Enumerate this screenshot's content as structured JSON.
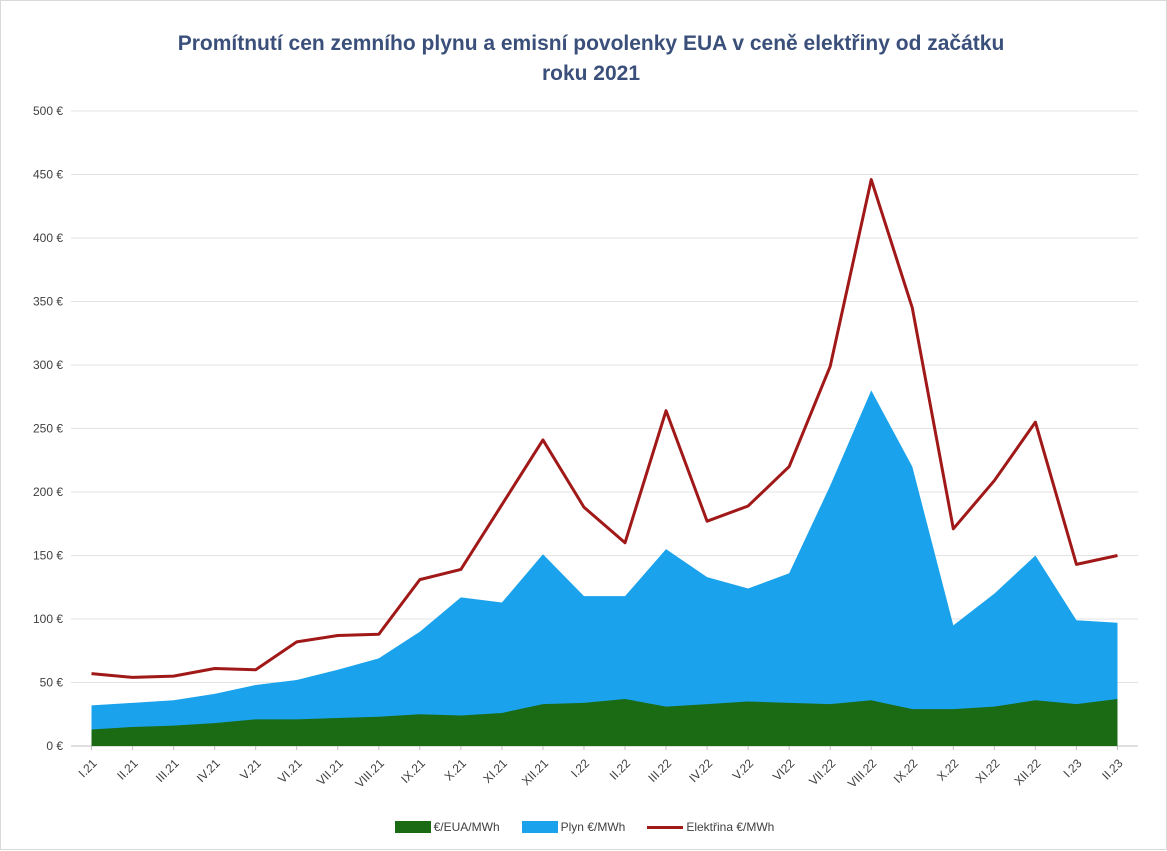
{
  "chart_data": {
    "type": "area",
    "title": "Promítnutí cen zemního plynu a emisní povolenky EUA v ceně elektřiny od začátku roku 2021",
    "title_lines": [
      "Promítnutí cen zemního plynu a emisní povolenky EUA v ceně elektřiny od začátku",
      "roku 2021"
    ],
    "categories": [
      "I.21",
      "II.21",
      "III.21",
      "IV.21",
      "V.21",
      "VI.21",
      "VII.21",
      "VIII.21",
      "IX.21",
      "X.21",
      "XI.21",
      "XII.21",
      "I.22",
      "II.22",
      "III.22",
      "IV.22",
      "V.22",
      "VI22",
      "VII.22",
      "VIII.22",
      "IX.22",
      "X.22",
      "XI.22",
      "XII.22",
      "I.23",
      "II.23"
    ],
    "series": [
      {
        "name": "€/EUA/MWh",
        "kind": "area",
        "color": "#1a6b14",
        "values": [
          13,
          15,
          16,
          18,
          21,
          21,
          22,
          23,
          25,
          24,
          26,
          33,
          34,
          37,
          31,
          33,
          35,
          34,
          33,
          36,
          29,
          29,
          31,
          36,
          33,
          37
        ]
      },
      {
        "name": "Plyn €/MWh",
        "kind": "stacked-area",
        "color": "#1aa3ec",
        "values": [
          19,
          19,
          20,
          23,
          27,
          31,
          38,
          46,
          65,
          93,
          87,
          118,
          84,
          81,
          124,
          100,
          89,
          102,
          172,
          244,
          191,
          66,
          89,
          114,
          66,
          60
        ]
      },
      {
        "name": "Elektřina €/MWh",
        "kind": "line",
        "color": "#a01818",
        "values": [
          57,
          54,
          55,
          61,
          60,
          82,
          87,
          88,
          131,
          139,
          190,
          241,
          188,
          160,
          264,
          177,
          189,
          220,
          299,
          446,
          345,
          171,
          209,
          255,
          143,
          150
        ]
      }
    ],
    "ylim": [
      0,
      500
    ],
    "yticks": [
      0,
      50,
      100,
      150,
      200,
      250,
      300,
      350,
      400,
      450,
      500
    ],
    "ytick_labels": [
      "0 €",
      "50 €",
      "100 €",
      "150 €",
      "200 €",
      "250 €",
      "300 €",
      "350 €",
      "400 €",
      "450 €",
      "500 €"
    ],
    "grid": true,
    "legend_position": "bottom"
  }
}
